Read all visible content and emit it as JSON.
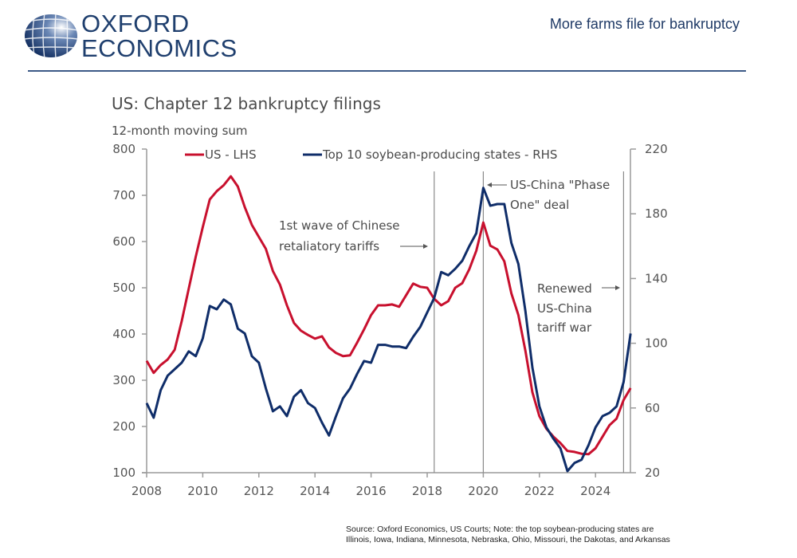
{
  "header": {
    "logo_line1": "OXFORD",
    "logo_line2": "ECONOMICS",
    "title": "More farms file for bankruptcy",
    "brand_color": "#1f3f6e"
  },
  "footer": {
    "line1": "Source: Oxford Economics, US Courts; Note: the top soybean-producing states are",
    "line2": "Illinois, Iowa, Indiana, Minnesota, Nebraska, Ohio, Missouri, the Dakotas, and Arkansas"
  },
  "chart_data": {
    "type": "line",
    "title": "US: Chapter 12 bankruptcy filings",
    "subtitle": "12-month moving sum",
    "xlabel": "",
    "ylabel": "",
    "x_ticks": [
      "2008",
      "2010",
      "2012",
      "2014",
      "2016",
      "2018",
      "2020",
      "2022",
      "2024"
    ],
    "xlim": [
      2008,
      2025.6
    ],
    "y_left": {
      "lim": [
        100,
        800
      ],
      "ticks": [
        "100",
        "200",
        "300",
        "400",
        "500",
        "600",
        "700",
        "800"
      ]
    },
    "y_right": {
      "lim": [
        20,
        220
      ],
      "ticks": [
        "20",
        "60",
        "100",
        "140",
        "180",
        "220"
      ]
    },
    "grid": false,
    "legend": "top",
    "x": [
      2008.0,
      2008.25,
      2008.5,
      2008.75,
      2009.0,
      2009.25,
      2009.5,
      2009.75,
      2010.0,
      2010.25,
      2010.5,
      2010.75,
      2011.0,
      2011.25,
      2011.5,
      2011.75,
      2012.0,
      2012.25,
      2012.5,
      2012.75,
      2013.0,
      2013.25,
      2013.5,
      2013.75,
      2014.0,
      2014.25,
      2014.5,
      2014.75,
      2015.0,
      2015.25,
      2015.5,
      2015.75,
      2016.0,
      2016.25,
      2016.5,
      2016.75,
      2017.0,
      2017.25,
      2017.5,
      2017.75,
      2018.0,
      2018.25,
      2018.5,
      2018.75,
      2019.0,
      2019.25,
      2019.5,
      2019.75,
      2020.0,
      2020.25,
      2020.5,
      2020.75,
      2021.0,
      2021.25,
      2021.5,
      2021.75,
      2022.0,
      2022.25,
      2022.5,
      2022.75,
      2023.0,
      2023.25,
      2023.5,
      2023.75,
      2024.0,
      2024.25,
      2024.5,
      2024.75,
      2025.0,
      2025.25
    ],
    "series": [
      {
        "name": "US - LHS",
        "axis": "left",
        "color": "#c8102e",
        "values": [
          342,
          316,
          333,
          345,
          366,
          428,
          498,
          567,
          631,
          691,
          709,
          722,
          741,
          719,
          674,
          636,
          610,
          584,
          536,
          507,
          462,
          424,
          407,
          398,
          390,
          395,
          371,
          359,
          352,
          354,
          381,
          410,
          441,
          462,
          462,
          464,
          459,
          484,
          509,
          502,
          500,
          476,
          462,
          471,
          500,
          510,
          540,
          580,
          641,
          591,
          583,
          557,
          488,
          441,
          364,
          274,
          222,
          195,
          178,
          164,
          147,
          145,
          141,
          140,
          153,
          178,
          203,
          217,
          257,
          283
        ]
      },
      {
        "name": "Top 10 soybean-producing states - RHS",
        "axis": "right",
        "color": "#0f2d69",
        "values": [
          63,
          54,
          71,
          80,
          84,
          88,
          95,
          92,
          103,
          123,
          121,
          127,
          124,
          109,
          106,
          92,
          88,
          72,
          58,
          61,
          55,
          67,
          71,
          63,
          60,
          51,
          43,
          55,
          66,
          72,
          81,
          89,
          88,
          99,
          99,
          98,
          98,
          97,
          104,
          110,
          119,
          128,
          144,
          142,
          146,
          151,
          160,
          168,
          196,
          185,
          186,
          186,
          162,
          149,
          120,
          85,
          61,
          48,
          41,
          35,
          21,
          26,
          28,
          37,
          48,
          55,
          57,
          61,
          76,
          106
        ]
      }
    ],
    "vertical_lines": [
      {
        "x": 2018.25,
        "label": "1st wave of Chinese retaliatory tariffs",
        "label_lines": [
          "1st wave of Chinese",
          "retaliatory tariffs"
        ],
        "arrow": "right"
      },
      {
        "x": 2020.0,
        "label": "US-China \"Phase One\" deal",
        "label_lines": [
          "US-China \"Phase",
          "One\" deal"
        ],
        "arrow": "left"
      },
      {
        "x": 2025.0,
        "label": "Renewed US-China tariff war",
        "label_lines": [
          "Renewed",
          "US-China",
          "tariff war"
        ],
        "arrow": "right"
      }
    ]
  }
}
